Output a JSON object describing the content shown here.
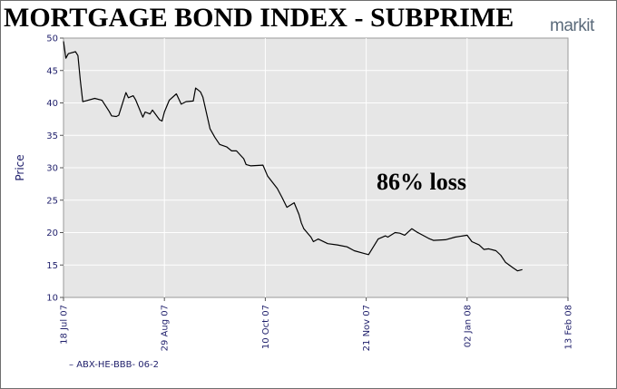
{
  "brand": {
    "name": "markit"
  },
  "chart_data": {
    "type": "line",
    "title": "MORTGAGE BOND INDEX - SUBPRIME",
    "xlabel": "",
    "ylabel": "Price",
    "ylim": [
      10,
      50
    ],
    "yticks": [
      10,
      15,
      20,
      25,
      30,
      35,
      40,
      45,
      50
    ],
    "xlim": [
      "2007-07-18",
      "2008-02-13"
    ],
    "xticks": [
      {
        "date": "2007-07-18",
        "label": "18 Jul 07"
      },
      {
        "date": "2007-08-29",
        "label": "29 Aug 07"
      },
      {
        "date": "2007-10-10",
        "label": "10 Oct 07"
      },
      {
        "date": "2007-11-21",
        "label": "21 Nov 07"
      },
      {
        "date": "2008-01-02",
        "label": "02 Jan 08"
      },
      {
        "date": "2008-02-13",
        "label": "13 Feb 08"
      }
    ],
    "grid": true,
    "annotation": "86% loss",
    "legend_position": "bottom-left",
    "series": [
      {
        "name": "ABX-HE-BBB- 06-2",
        "color": "#000000",
        "points": [
          [
            "2007-07-18",
            49.5
          ],
          [
            "2007-07-19",
            46.9
          ],
          [
            "2007-07-20",
            47.6
          ],
          [
            "2007-07-23",
            47.9
          ],
          [
            "2007-07-24",
            47.3
          ],
          [
            "2007-07-25",
            43.5
          ],
          [
            "2007-07-26",
            40.2
          ],
          [
            "2007-07-27",
            40.3
          ],
          [
            "2007-07-31",
            40.7
          ],
          [
            "2007-08-03",
            40.4
          ],
          [
            "2007-08-06",
            38.7
          ],
          [
            "2007-08-07",
            38.0
          ],
          [
            "2007-08-09",
            37.9
          ],
          [
            "2007-08-10",
            38.1
          ],
          [
            "2007-08-13",
            41.6
          ],
          [
            "2007-08-14",
            40.8
          ],
          [
            "2007-08-16",
            41.1
          ],
          [
            "2007-08-17",
            40.5
          ],
          [
            "2007-08-20",
            37.8
          ],
          [
            "2007-08-21",
            38.6
          ],
          [
            "2007-08-23",
            38.3
          ],
          [
            "2007-08-24",
            38.9
          ],
          [
            "2007-08-27",
            37.4
          ],
          [
            "2007-08-28",
            37.2
          ],
          [
            "2007-08-29",
            38.6
          ],
          [
            "2007-08-31",
            40.4
          ],
          [
            "2007-09-03",
            41.4
          ],
          [
            "2007-09-04",
            40.6
          ],
          [
            "2007-09-05",
            39.8
          ],
          [
            "2007-09-07",
            40.2
          ],
          [
            "2007-09-10",
            40.3
          ],
          [
            "2007-09-11",
            42.3
          ],
          [
            "2007-09-12",
            42.0
          ],
          [
            "2007-09-13",
            41.7
          ],
          [
            "2007-09-14",
            40.9
          ],
          [
            "2007-09-17",
            36.0
          ],
          [
            "2007-09-19",
            34.7
          ],
          [
            "2007-09-21",
            33.6
          ],
          [
            "2007-09-24",
            33.2
          ],
          [
            "2007-09-26",
            32.6
          ],
          [
            "2007-09-28",
            32.6
          ],
          [
            "2007-10-01",
            31.4
          ],
          [
            "2007-10-02",
            30.5
          ],
          [
            "2007-10-04",
            30.3
          ],
          [
            "2007-10-09",
            30.4
          ],
          [
            "2007-10-11",
            28.7
          ],
          [
            "2007-10-15",
            26.8
          ],
          [
            "2007-10-17",
            25.4
          ],
          [
            "2007-10-19",
            23.9
          ],
          [
            "2007-10-22",
            24.6
          ],
          [
            "2007-10-24",
            22.8
          ],
          [
            "2007-10-25",
            21.5
          ],
          [
            "2007-10-26",
            20.6
          ],
          [
            "2007-10-29",
            19.3
          ],
          [
            "2007-10-30",
            18.6
          ],
          [
            "2007-11-01",
            19.0
          ],
          [
            "2007-11-05",
            18.3
          ],
          [
            "2007-11-09",
            18.1
          ],
          [
            "2007-11-13",
            17.8
          ],
          [
            "2007-11-16",
            17.2
          ],
          [
            "2007-11-20",
            16.8
          ],
          [
            "2007-11-22",
            16.6
          ],
          [
            "2007-11-26",
            19.0
          ],
          [
            "2007-11-29",
            19.5
          ],
          [
            "2007-11-30",
            19.3
          ],
          [
            "2007-12-03",
            20.0
          ],
          [
            "2007-12-05",
            19.9
          ],
          [
            "2007-12-07",
            19.6
          ],
          [
            "2007-12-10",
            20.6
          ],
          [
            "2007-12-12",
            20.1
          ],
          [
            "2007-12-14",
            19.7
          ],
          [
            "2007-12-17",
            19.1
          ],
          [
            "2007-12-19",
            18.8
          ],
          [
            "2007-12-24",
            18.9
          ],
          [
            "2007-12-28",
            19.3
          ],
          [
            "2008-01-02",
            19.6
          ],
          [
            "2008-01-04",
            18.6
          ],
          [
            "2008-01-07",
            18.1
          ],
          [
            "2008-01-09",
            17.4
          ],
          [
            "2008-01-11",
            17.5
          ],
          [
            "2008-01-14",
            17.2
          ],
          [
            "2008-01-16",
            16.5
          ],
          [
            "2008-01-18",
            15.4
          ],
          [
            "2008-01-21",
            14.6
          ],
          [
            "2008-01-23",
            14.1
          ],
          [
            "2008-01-25",
            14.3
          ]
        ]
      }
    ]
  }
}
